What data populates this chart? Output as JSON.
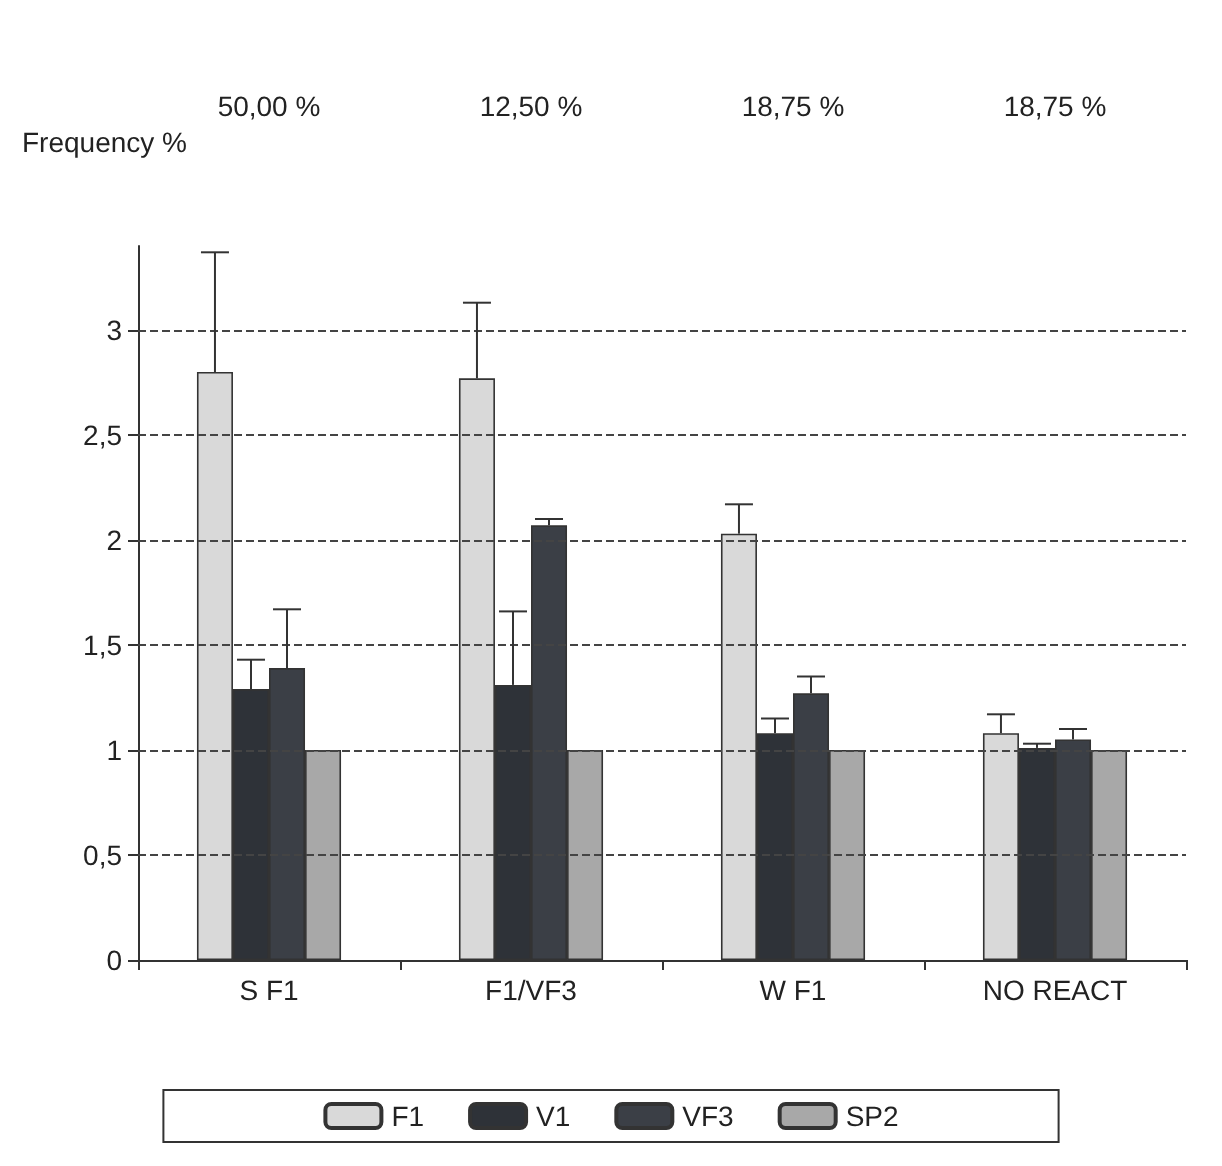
{
  "chart_data": {
    "type": "bar",
    "ylabel": "Frequency %",
    "categories": [
      "S F1",
      "F1/VF3",
      "W F1",
      "NO REACT"
    ],
    "series": [
      {
        "name": "F1",
        "color": "#d9d9d9",
        "values": [
          2.8,
          2.77,
          2.03,
          1.08
        ],
        "errors": [
          [
            2.8,
            3.37
          ],
          [
            2.77,
            3.13
          ],
          [
            2.03,
            2.17
          ],
          [
            1.08,
            1.17
          ]
        ]
      },
      {
        "name": "V1",
        "color": "#2e3238",
        "values": [
          1.29,
          1.31,
          1.08,
          1.01
        ],
        "errors": [
          [
            1.29,
            1.43
          ],
          [
            1.31,
            1.66
          ],
          [
            1.08,
            1.15
          ],
          [
            1.01,
            1.03
          ]
        ]
      },
      {
        "name": "VF3",
        "color": "#3b3f46",
        "values": [
          1.39,
          2.07,
          1.27,
          1.05
        ],
        "errors": [
          [
            1.39,
            1.67
          ],
          [
            2.07,
            2.1
          ],
          [
            1.27,
            1.35
          ],
          [
            1.05,
            1.1
          ]
        ]
      },
      {
        "name": "SP2",
        "color": "#a8a8a8",
        "values": [
          1,
          1,
          1,
          1
        ]
      }
    ],
    "annotations": [
      "50,00 %",
      "12,50 %",
      "18,75 %",
      "18,75 %"
    ],
    "ylim": [
      0,
      3.4
    ],
    "yticks": [
      0,
      {
        "value": 0.5,
        "label": "0,5"
      },
      1,
      {
        "value": 1.5,
        "label": "1,5"
      },
      2,
      {
        "value": 2.5,
        "label": "2,5"
      },
      3
    ],
    "grid": "y",
    "legend": "bottom"
  }
}
